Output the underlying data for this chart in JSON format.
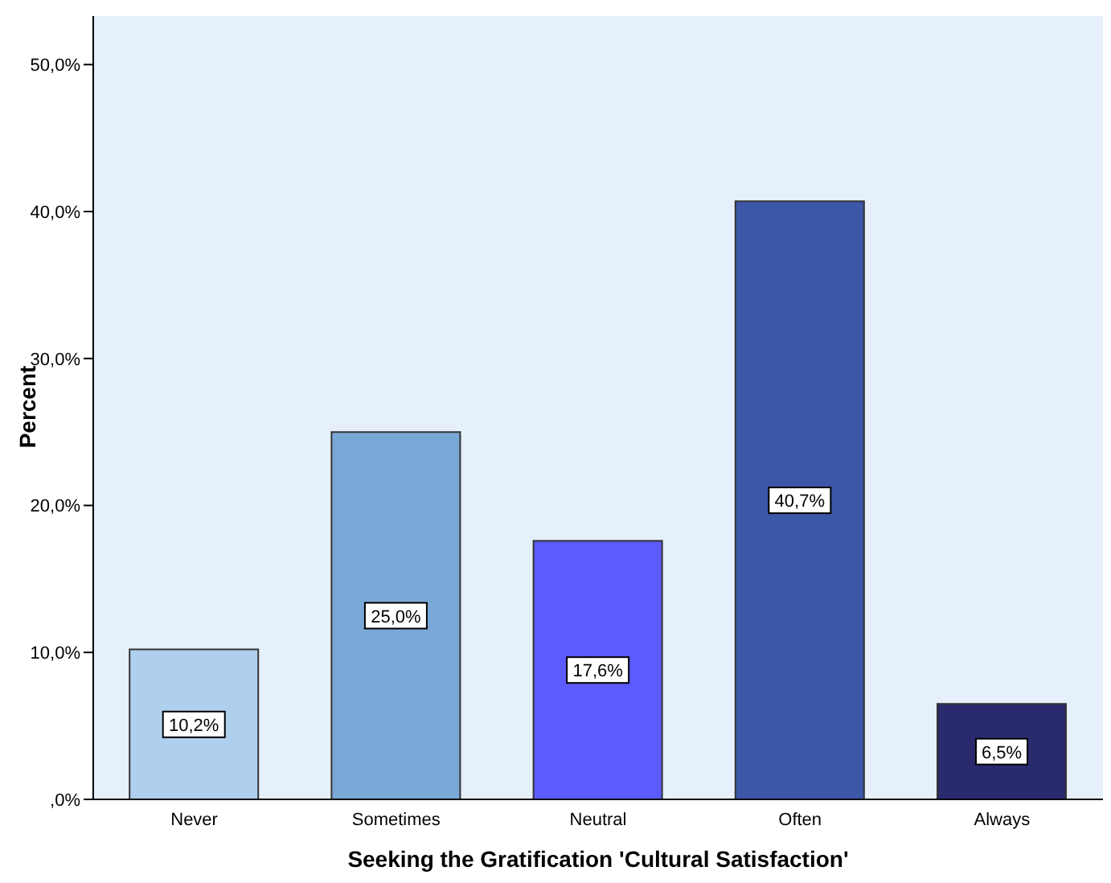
{
  "chart_data": {
    "type": "bar",
    "xlabel": "Seeking the Gratification 'Cultural Satisfaction'",
    "ylabel": "Percent",
    "categories": [
      "Never",
      "Sometimes",
      "Neutral",
      "Often",
      "Always"
    ],
    "values": [
      10.2,
      25.0,
      17.6,
      40.7,
      6.5
    ],
    "colors": [
      "#aed0ee",
      "#7aa8d6",
      "#5b5bff",
      "#3c56a8",
      "#2a2a6e"
    ],
    "value_labels": [
      "10,2%",
      "25,0%",
      "17,6%",
      "40,7%",
      "6,5%"
    ],
    "ylim": [
      0,
      53.3
    ],
    "yticks": [
      {
        "value": 0,
        "label": ",0%"
      },
      {
        "value": 10,
        "label": "10,0%"
      },
      {
        "value": 20,
        "label": "20,0%"
      },
      {
        "value": 30,
        "label": "30,0%"
      },
      {
        "value": 40,
        "label": "40,0%"
      },
      {
        "value": 50,
        "label": "50,0%"
      }
    ]
  }
}
